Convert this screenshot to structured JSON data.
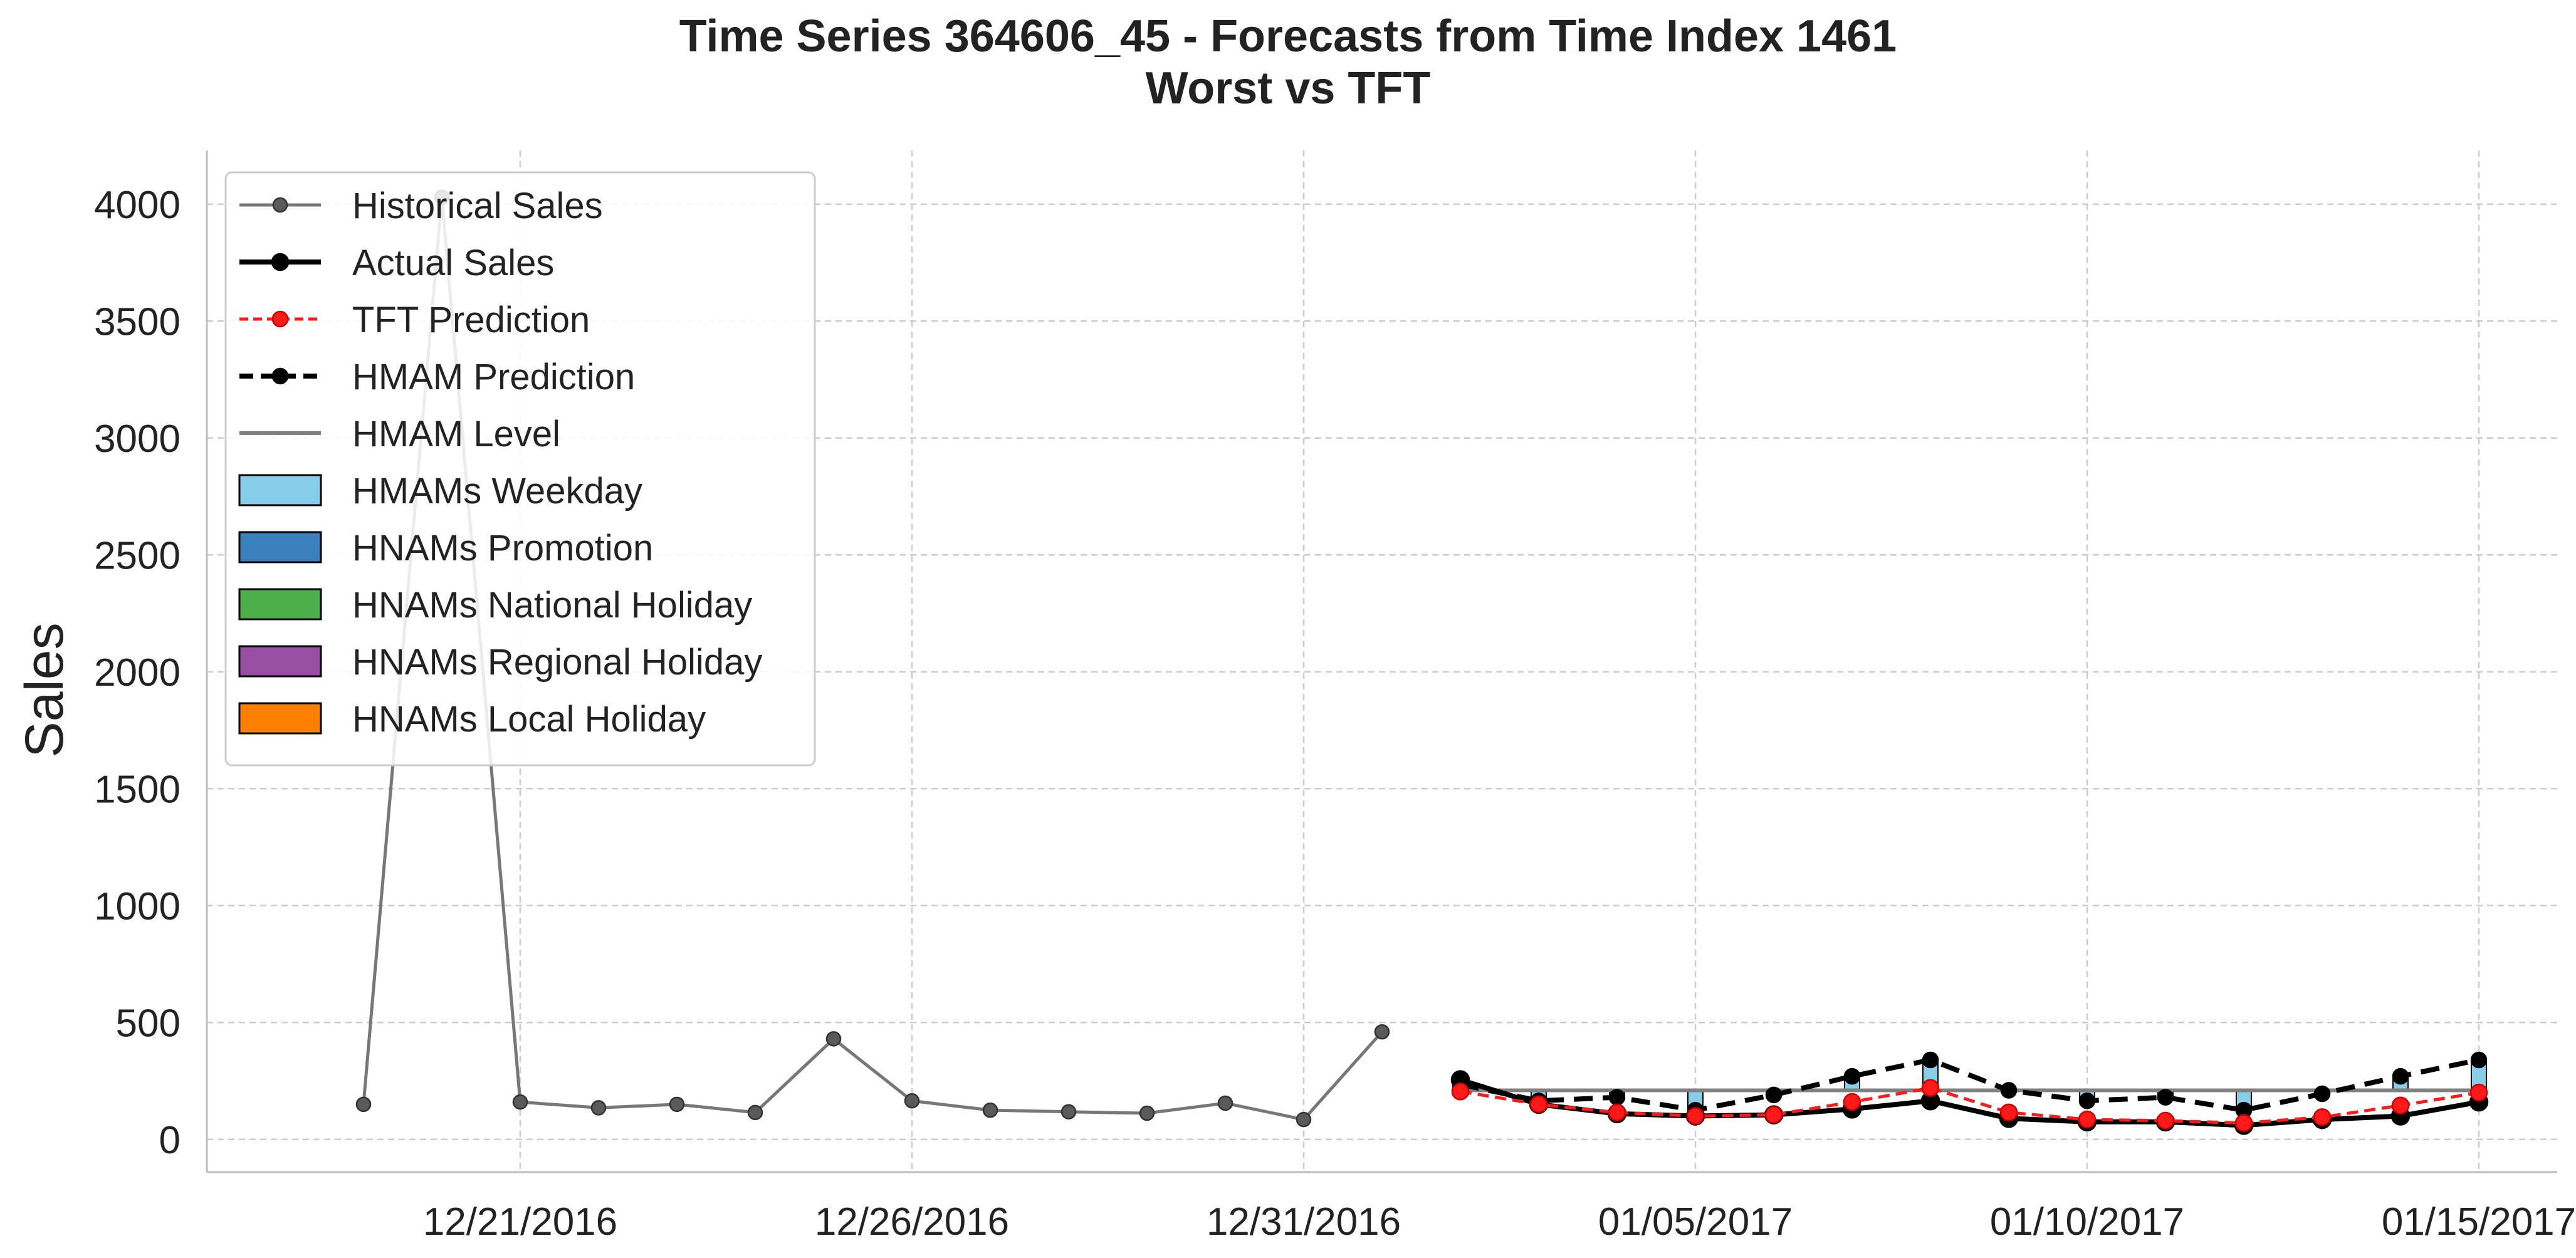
{
  "chart_data": {
    "type": "line",
    "title": "Time Series 364606_45 - Forecasts from Time Index 1461",
    "subtitle": "Worst vs TFT",
    "xlabel": "",
    "ylabel": "Sales",
    "ylim": [
      -140,
      4230
    ],
    "xlim": [
      "2016-12-17",
      "2017-01-16"
    ],
    "yticks": [
      0,
      500,
      1000,
      1500,
      2000,
      2500,
      3000,
      3500,
      4000
    ],
    "xticks": [
      "2016-12-21",
      "2016-12-26",
      "2016-12-31",
      "2017-01-05",
      "2017-01-10",
      "2017-01-15"
    ],
    "xtick_labels": [
      "12/21/2016",
      "12/26/2016",
      "12/31/2016",
      "01/05/2017",
      "01/10/2017",
      "01/15/2017"
    ],
    "grid": true,
    "legend_position": "top-left",
    "legend": [
      {
        "label": "Historical Sales",
        "kind": "line",
        "color": "#777777",
        "dash": "solid",
        "marker": true
      },
      {
        "label": "Actual Sales",
        "kind": "line",
        "color": "#000000",
        "dash": "solid",
        "marker": true
      },
      {
        "label": "TFT Prediction",
        "kind": "line",
        "color": "#ff1a1a",
        "dash": "dashed",
        "marker": true
      },
      {
        "label": "HMAM Prediction",
        "kind": "line",
        "color": "#000000",
        "dash": "dashed",
        "marker": true
      },
      {
        "label": "HMAM Level",
        "kind": "line",
        "color": "#808080",
        "dash": "solid",
        "marker": false
      },
      {
        "label": "HMAMs Weekday",
        "kind": "patch",
        "color": "#87ceeb"
      },
      {
        "label": "HNAMs Promotion",
        "kind": "patch",
        "color": "#3a80bf"
      },
      {
        "label": "HNAMs National Holiday",
        "kind": "patch",
        "color": "#4daf4a"
      },
      {
        "label": "HNAMs Regional Holiday",
        "kind": "patch",
        "color": "#984ea3"
      },
      {
        "label": "HNAMs Local Holiday",
        "kind": "patch",
        "color": "#ff7f00"
      }
    ],
    "series": [
      {
        "name": "Historical Sales",
        "color": "#777777",
        "points": [
          {
            "x": "2016-12-19",
            "y": 150
          },
          {
            "x": "2016-12-20",
            "y": 4030
          },
          {
            "x": "2016-12-21",
            "y": 160
          },
          {
            "x": "2016-12-22",
            "y": 135
          },
          {
            "x": "2016-12-23",
            "y": 150
          },
          {
            "x": "2016-12-24",
            "y": 115
          },
          {
            "x": "2016-12-25",
            "y": 430
          },
          {
            "x": "2016-12-26",
            "y": 165
          },
          {
            "x": "2016-12-27",
            "y": 125
          },
          {
            "x": "2016-12-28",
            "y": 118
          },
          {
            "x": "2016-12-29",
            "y": 112
          },
          {
            "x": "2016-12-30",
            "y": 155
          },
          {
            "x": "2016-12-31",
            "y": 85
          },
          {
            "x": "2017-01-01",
            "y": 460
          }
        ]
      },
      {
        "name": "Actual Sales",
        "color": "#000000",
        "points": [
          {
            "x": "2017-01-02",
            "y": 255
          },
          {
            "x": "2017-01-03",
            "y": 150
          },
          {
            "x": "2017-01-04",
            "y": 110
          },
          {
            "x": "2017-01-05",
            "y": 100
          },
          {
            "x": "2017-01-06",
            "y": 105
          },
          {
            "x": "2017-01-07",
            "y": 130
          },
          {
            "x": "2017-01-08",
            "y": 165
          },
          {
            "x": "2017-01-09",
            "y": 90
          },
          {
            "x": "2017-01-10",
            "y": 75
          },
          {
            "x": "2017-01-11",
            "y": 75
          },
          {
            "x": "2017-01-12",
            "y": 60
          },
          {
            "x": "2017-01-13",
            "y": 85
          },
          {
            "x": "2017-01-14",
            "y": 100
          },
          {
            "x": "2017-01-15",
            "y": 160
          }
        ]
      },
      {
        "name": "TFT Prediction",
        "color": "#ff1a1a",
        "points": [
          {
            "x": "2017-01-02",
            "y": 205
          },
          {
            "x": "2017-01-03",
            "y": 150
          },
          {
            "x": "2017-01-04",
            "y": 115
          },
          {
            "x": "2017-01-05",
            "y": 100
          },
          {
            "x": "2017-01-06",
            "y": 105
          },
          {
            "x": "2017-01-07",
            "y": 160
          },
          {
            "x": "2017-01-08",
            "y": 220
          },
          {
            "x": "2017-01-09",
            "y": 115
          },
          {
            "x": "2017-01-10",
            "y": 85
          },
          {
            "x": "2017-01-11",
            "y": 80
          },
          {
            "x": "2017-01-12",
            "y": 70
          },
          {
            "x": "2017-01-13",
            "y": 95
          },
          {
            "x": "2017-01-14",
            "y": 145
          },
          {
            "x": "2017-01-15",
            "y": 200
          }
        ]
      },
      {
        "name": "HMAM Prediction",
        "color": "#000000",
        "points": [
          {
            "x": "2017-01-02",
            "y": 235
          },
          {
            "x": "2017-01-03",
            "y": 165
          },
          {
            "x": "2017-01-04",
            "y": 180
          },
          {
            "x": "2017-01-05",
            "y": 125
          },
          {
            "x": "2017-01-06",
            "y": 190
          },
          {
            "x": "2017-01-07",
            "y": 270
          },
          {
            "x": "2017-01-08",
            "y": 340
          },
          {
            "x": "2017-01-09",
            "y": 210
          },
          {
            "x": "2017-01-10",
            "y": 165
          },
          {
            "x": "2017-01-11",
            "y": 180
          },
          {
            "x": "2017-01-12",
            "y": 125
          },
          {
            "x": "2017-01-13",
            "y": 195
          },
          {
            "x": "2017-01-14",
            "y": 270
          },
          {
            "x": "2017-01-15",
            "y": 340
          }
        ]
      }
    ],
    "hmam_level": {
      "name": "HMAM Level",
      "color": "#808080",
      "x": [
        "2017-01-02",
        "2017-01-15"
      ],
      "y": 210
    },
    "component_bars": [
      {
        "x": "2017-01-02",
        "weekday": 25,
        "national_holiday": 25
      },
      {
        "x": "2017-01-03",
        "weekday": -45
      },
      {
        "x": "2017-01-04",
        "weekday": -30
      },
      {
        "x": "2017-01-05",
        "weekday": -85
      },
      {
        "x": "2017-01-06",
        "weekday": -20
      },
      {
        "x": "2017-01-07",
        "weekday": 60
      },
      {
        "x": "2017-01-08",
        "weekday": 130
      },
      {
        "x": "2017-01-09",
        "weekday": 0
      },
      {
        "x": "2017-01-10",
        "weekday": -45
      },
      {
        "x": "2017-01-11",
        "weekday": -30
      },
      {
        "x": "2017-01-12",
        "weekday": -85
      },
      {
        "x": "2017-01-13",
        "weekday": -15
      },
      {
        "x": "2017-01-14",
        "weekday": 60
      },
      {
        "x": "2017-01-15",
        "weekday": 130
      }
    ]
  }
}
